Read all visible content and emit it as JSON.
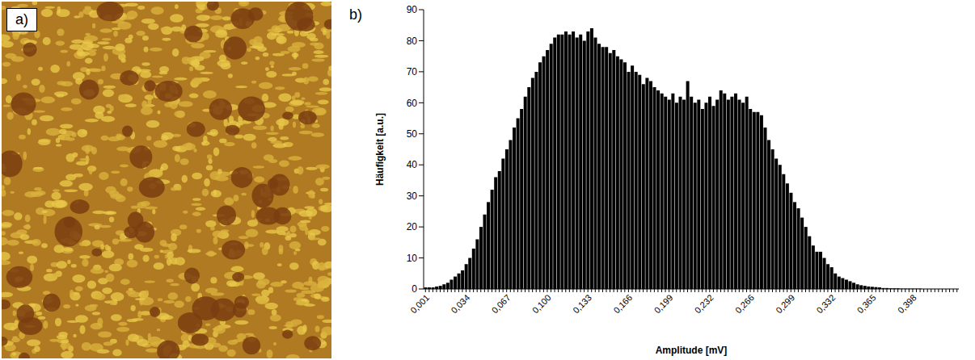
{
  "panel_labels": [
    "a)",
    "b)"
  ],
  "chart_data": {
    "type": "bar",
    "x_label": "Amplitude [mV]",
    "y_label": "Häufigkeit [a.u.]",
    "color": "#000000",
    "grid": false,
    "ylim": [
      0,
      90
    ],
    "yticks": [
      0,
      10,
      20,
      30,
      40,
      50,
      60,
      70,
      80,
      90
    ],
    "categories": [
      "0,001",
      null,
      null,
      null,
      null,
      null,
      null,
      null,
      null,
      null,
      null,
      "0,034",
      null,
      null,
      null,
      null,
      null,
      null,
      null,
      null,
      null,
      null,
      "0,067",
      null,
      null,
      null,
      null,
      null,
      null,
      null,
      null,
      null,
      null,
      "0,100",
      null,
      null,
      null,
      null,
      null,
      null,
      null,
      null,
      null,
      null,
      "0,133",
      null,
      null,
      null,
      null,
      null,
      null,
      null,
      null,
      null,
      null,
      "0,166",
      null,
      null,
      null,
      null,
      null,
      null,
      null,
      null,
      null,
      null,
      "0,199",
      null,
      null,
      null,
      null,
      null,
      null,
      null,
      null,
      null,
      null,
      "0,232",
      null,
      null,
      null,
      null,
      null,
      null,
      null,
      null,
      null,
      null,
      "0,266",
      null,
      null,
      null,
      null,
      null,
      null,
      null,
      null,
      null,
      null,
      "0,299",
      null,
      null,
      null,
      null,
      null,
      null,
      null,
      null,
      null,
      null,
      "0,332",
      null,
      null,
      null,
      null,
      null,
      null,
      null,
      null,
      null,
      null,
      "0,365",
      null,
      null,
      null,
      null,
      null,
      null,
      null,
      null,
      null,
      null,
      "0,398",
      null,
      null,
      null,
      null,
      null,
      null,
      null,
      null,
      null,
      null,
      null,
      null
    ],
    "values": [
      0.5,
      0.5,
      0.5,
      0.8,
      1,
      1.5,
      2,
      3,
      4,
      5,
      6,
      8,
      10,
      13,
      16,
      20,
      24,
      28,
      32,
      36,
      38,
      42,
      45,
      48,
      52,
      55,
      58,
      62,
      65,
      68,
      70,
      73,
      75,
      77,
      79,
      81,
      82,
      82,
      83,
      82,
      83,
      81,
      82,
      80,
      83,
      84,
      81,
      79,
      78,
      78,
      76,
      77,
      75,
      74,
      73,
      70,
      72,
      70,
      69,
      66,
      68,
      67,
      65,
      64,
      63,
      62,
      61,
      63,
      60,
      62,
      61,
      67,
      62,
      60,
      61,
      58,
      60,
      62,
      59,
      61,
      64,
      63,
      61,
      62,
      63,
      61,
      60,
      62,
      58,
      57,
      57,
      56,
      52,
      48,
      45,
      42,
      40,
      37,
      34,
      31,
      28,
      26,
      23,
      20,
      17,
      14,
      12,
      12,
      10,
      8,
      7,
      5,
      4,
      3.5,
      3,
      2.5,
      2,
      1.5,
      1.2,
      1,
      0.8,
      0.7,
      0.6,
      0.5,
      0.3,
      0.3,
      0.2,
      0.2,
      0.2,
      0.1,
      0.1,
      0.1,
      0.1,
      0.1,
      0.1,
      0,
      0,
      0,
      0,
      0,
      0,
      0,
      0,
      0,
      0
    ]
  }
}
